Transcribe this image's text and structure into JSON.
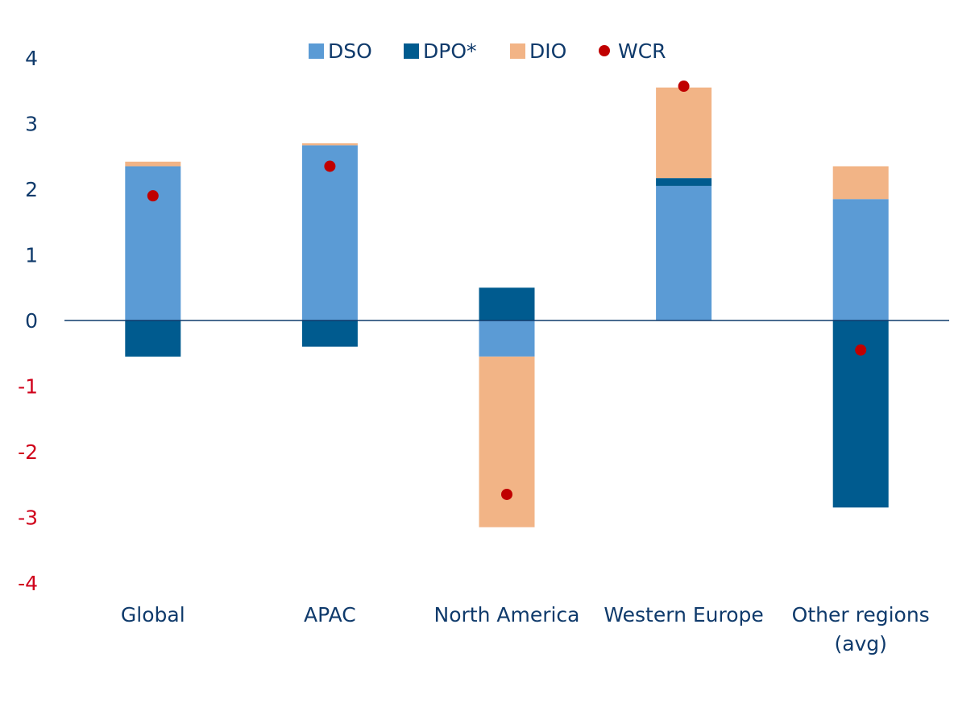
{
  "chart_data": {
    "type": "bar",
    "stacked": true,
    "title": "",
    "xlabel": "",
    "ylabel": "",
    "ylim": [
      -4,
      4
    ],
    "yticks": [
      4,
      3,
      2,
      1,
      0,
      -1,
      -2,
      -3,
      -4
    ],
    "grid": false,
    "legend_position": "top-center",
    "categories": [
      [
        "Global"
      ],
      [
        "APAC"
      ],
      [
        "North America"
      ],
      [
        "Western Europe"
      ],
      [
        "Other regions",
        "(avg)"
      ]
    ],
    "series": [
      {
        "name": "DSO",
        "kind": "bar",
        "color": "#5b9bd5",
        "values": [
          2.35,
          2.67,
          -0.55,
          2.05,
          1.85
        ]
      },
      {
        "name": "DPO*",
        "kind": "bar",
        "color": "#005b8f",
        "values": [
          -0.55,
          -0.4,
          0.5,
          0.12,
          -2.85
        ]
      },
      {
        "name": "DIO",
        "kind": "bar",
        "color": "#f2b486",
        "values": [
          0.07,
          0.03,
          -2.6,
          1.38,
          0.5
        ]
      },
      {
        "name": "WCR",
        "kind": "point",
        "color": "#c00000",
        "values": [
          1.9,
          2.35,
          -2.65,
          3.57,
          -0.45
        ]
      }
    ],
    "colors": {
      "positive_tick": "#0f3a6b",
      "negative_tick": "#d0021b",
      "axis": "#0f3a6b"
    }
  }
}
